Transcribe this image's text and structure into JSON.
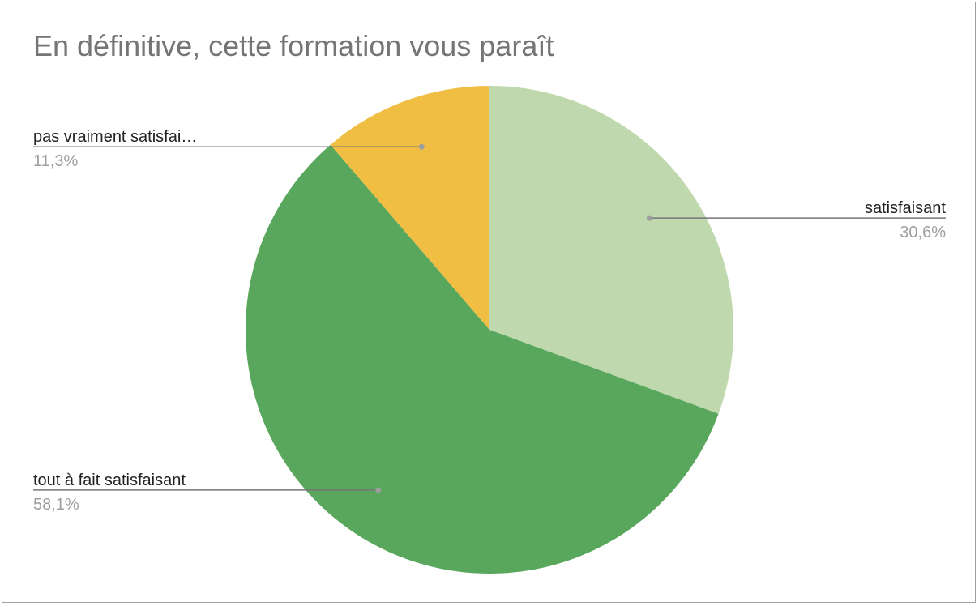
{
  "chart_data": {
    "type": "pie",
    "title": "En définitive, cette formation vous paraît",
    "start": "top",
    "direction": "clockwise",
    "slices": [
      {
        "label": "satisfaisant",
        "value": 30.6,
        "display": "30,6%",
        "color": "#bfd8ad"
      },
      {
        "label": "tout à fait satisfaisant",
        "value": 58.1,
        "display": "58,1%",
        "color": "#59a75c"
      },
      {
        "label": "pas vraiment satisfai…",
        "value": 11.3,
        "display": "11,3%",
        "color": "#efbe43"
      }
    ],
    "legend": "none",
    "leader_line_color": "#757575",
    "border_color": "#9e9e9e"
  }
}
